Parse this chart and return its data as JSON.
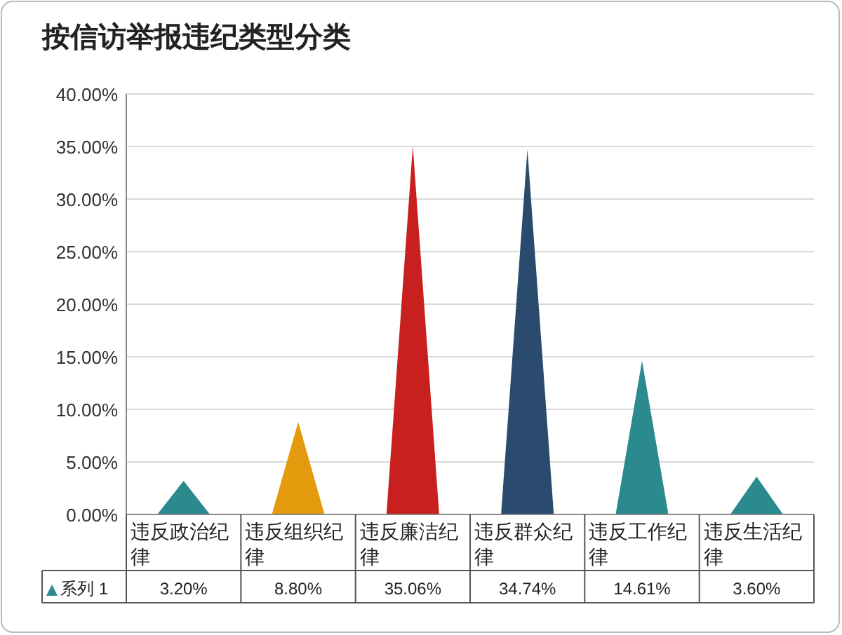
{
  "chart_data": {
    "type": "bar",
    "title": "按信访举报违纪类型分类",
    "categories": [
      "违反政治纪律",
      "违反组织纪律",
      "违反廉洁纪律",
      "违反群众纪律",
      "违反工作纪律",
      "违反生活纪律"
    ],
    "series": [
      {
        "name": "系列 1",
        "color": "#2a8a8e",
        "colors": [
          "#2a8a8e",
          "#e39a0c",
          "#c8201e",
          "#2a4b6e",
          "#2a8a8e",
          "#2a8a8e"
        ],
        "values": [
          3.2,
          8.8,
          35.06,
          34.74,
          14.61,
          3.6
        ],
        "value_labels": [
          "3.20%",
          "8.80%",
          "35.06%",
          "34.74%",
          "14.61%",
          "3.60%"
        ]
      }
    ],
    "ylim": [
      0,
      40
    ],
    "yticks": [
      {
        "value": 0,
        "label": "0.00%"
      },
      {
        "value": 5,
        "label": "5.00%"
      },
      {
        "value": 10,
        "label": "10.00%"
      },
      {
        "value": 15,
        "label": "15.00%"
      },
      {
        "value": 20,
        "label": "20.00%"
      },
      {
        "value": 25,
        "label": "25.00%"
      },
      {
        "value": 30,
        "label": "30.00%"
      },
      {
        "value": 35,
        "label": "35.00%"
      },
      {
        "value": 40,
        "label": "40.00%"
      }
    ],
    "grid": "y",
    "legend": "bottom",
    "marker": "triangle"
  }
}
